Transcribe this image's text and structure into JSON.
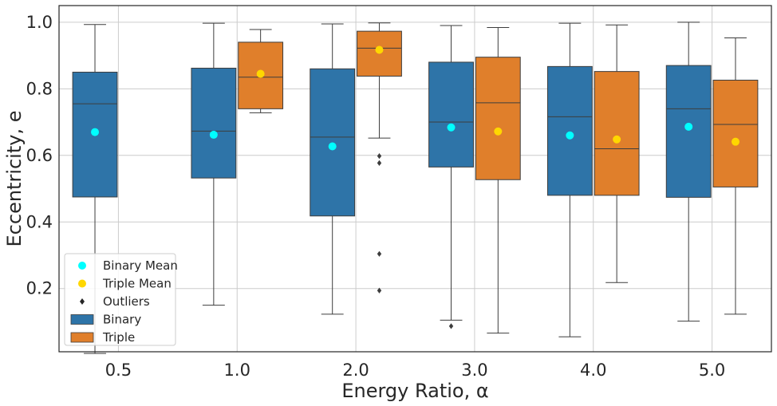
{
  "chart_data": {
    "type": "box",
    "xlabel": "Energy Ratio, α",
    "ylabel": "Eccentricity, e",
    "ylim": [
      0.01,
      1.05
    ],
    "yticks": [
      "0.2",
      "0.4",
      "0.6",
      "0.8",
      "1.0"
    ],
    "ytick_values": [
      0.2,
      0.4,
      0.6,
      0.8,
      1.0
    ],
    "categories": [
      "0.5",
      "1.0",
      "2.0",
      "3.0",
      "4.0",
      "5.0"
    ],
    "grid": true,
    "legend_position": "lower-left",
    "series": [
      {
        "name": "Binary",
        "mean_label": "Binary Mean",
        "color": "#2e74a8",
        "mean_color": "#00ffff",
        "boxes": [
          {
            "min": 0.005,
            "q1": 0.475,
            "median": 0.755,
            "q3": 0.85,
            "max": 0.993,
            "mean": 0.67,
            "outliers": []
          },
          {
            "min": 0.15,
            "q1": 0.532,
            "median": 0.673,
            "q3": 0.862,
            "max": 0.997,
            "mean": 0.662,
            "outliers": []
          },
          {
            "min": 0.123,
            "q1": 0.418,
            "median": 0.655,
            "q3": 0.86,
            "max": 0.995,
            "mean": 0.627,
            "outliers": []
          },
          {
            "min": 0.105,
            "q1": 0.565,
            "median": 0.7,
            "q3": 0.88,
            "max": 0.99,
            "mean": 0.684,
            "outliers": [
              0.087
            ]
          },
          {
            "min": 0.055,
            "q1": 0.48,
            "median": 0.716,
            "q3": 0.867,
            "max": 0.997,
            "mean": 0.66,
            "outliers": []
          },
          {
            "min": 0.102,
            "q1": 0.474,
            "median": 0.74,
            "q3": 0.87,
            "max": 1.0,
            "mean": 0.686,
            "outliers": []
          }
        ]
      },
      {
        "name": "Triple",
        "mean_label": "Triple Mean",
        "color": "#e07f2b",
        "mean_color": "#ffd700",
        "boxes": [
          null,
          {
            "min": 0.728,
            "q1": 0.74,
            "median": 0.835,
            "q3": 0.94,
            "max": 0.978,
            "mean": 0.845,
            "outliers": []
          },
          {
            "min": 0.652,
            "q1": 0.838,
            "median": 0.922,
            "q3": 0.973,
            "max": 0.998,
            "mean": 0.917,
            "outliers": [
              0.598,
              0.577,
              0.304,
              0.194
            ]
          },
          {
            "min": 0.066,
            "q1": 0.527,
            "median": 0.758,
            "q3": 0.895,
            "max": 0.984,
            "mean": 0.672,
            "outliers": []
          },
          {
            "min": 0.218,
            "q1": 0.48,
            "median": 0.62,
            "q3": 0.852,
            "max": 0.992,
            "mean": 0.648,
            "outliers": []
          },
          {
            "min": 0.123,
            "q1": 0.505,
            "median": 0.693,
            "q3": 0.826,
            "max": 0.953,
            "mean": 0.641,
            "outliers": []
          }
        ]
      }
    ],
    "legend": [
      {
        "label": "Binary Mean",
        "kind": "dot",
        "color": "#00ffff"
      },
      {
        "label": "Triple Mean",
        "kind": "dot",
        "color": "#ffd700"
      },
      {
        "label": "Outliers",
        "kind": "diamond",
        "color": "#262626"
      },
      {
        "label": "Binary",
        "kind": "patch",
        "color": "#2e74a8"
      },
      {
        "label": "Triple",
        "kind": "patch",
        "color": "#e07f2b"
      }
    ]
  }
}
